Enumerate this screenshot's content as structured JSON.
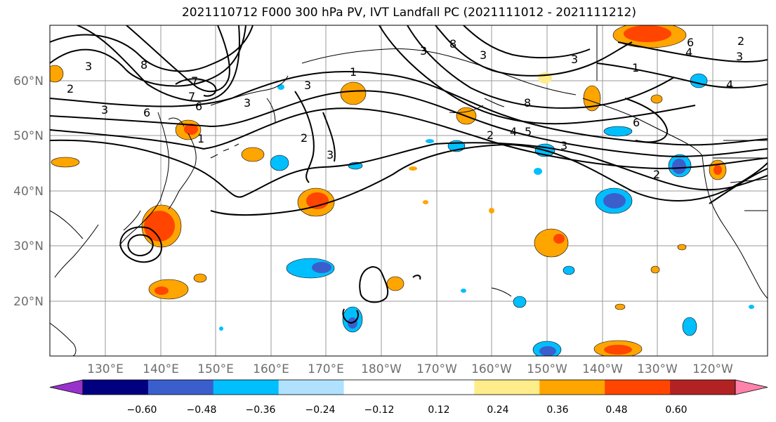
{
  "title": "2021110712 F000 300 hPa PV, IVT Landfall PC (2021111012 - 2021111212)",
  "lat_labels": [
    "60°N",
    "50°N",
    "40°N",
    "30°N",
    "20°N"
  ],
  "lon_labels": [
    "130°E",
    "140°E",
    "150°E",
    "160°E",
    "170°E",
    "180°W",
    "170°W",
    "160°W",
    "150°W",
    "140°W",
    "130°W",
    "120°W"
  ],
  "colorbar": {
    "colors": [
      "#9932cc",
      "#000080",
      "#3a5fcd",
      "#00bfff",
      "#b0e2ff",
      "#ffffff",
      "#ffffff",
      "#ffec8b",
      "#ffa500",
      "#ff4500",
      "#b22222",
      "#ff82ab"
    ],
    "tick_labels": [
      "−0.60",
      "−0.48",
      "−0.36",
      "−0.24",
      "−0.12",
      "0.12",
      "0.24",
      "0.36",
      "0.48",
      "0.60"
    ]
  },
  "contour_labels": [
    "8",
    "2",
    "3",
    "7",
    "6",
    "3",
    "1",
    "3",
    "2",
    "3",
    "8",
    "3",
    "1",
    "3",
    "6",
    "4",
    "3",
    "2",
    "4",
    "5",
    "3",
    "6",
    "4",
    "2",
    "8",
    "7",
    "3",
    "1",
    "2",
    "6",
    "3",
    "4"
  ]
}
